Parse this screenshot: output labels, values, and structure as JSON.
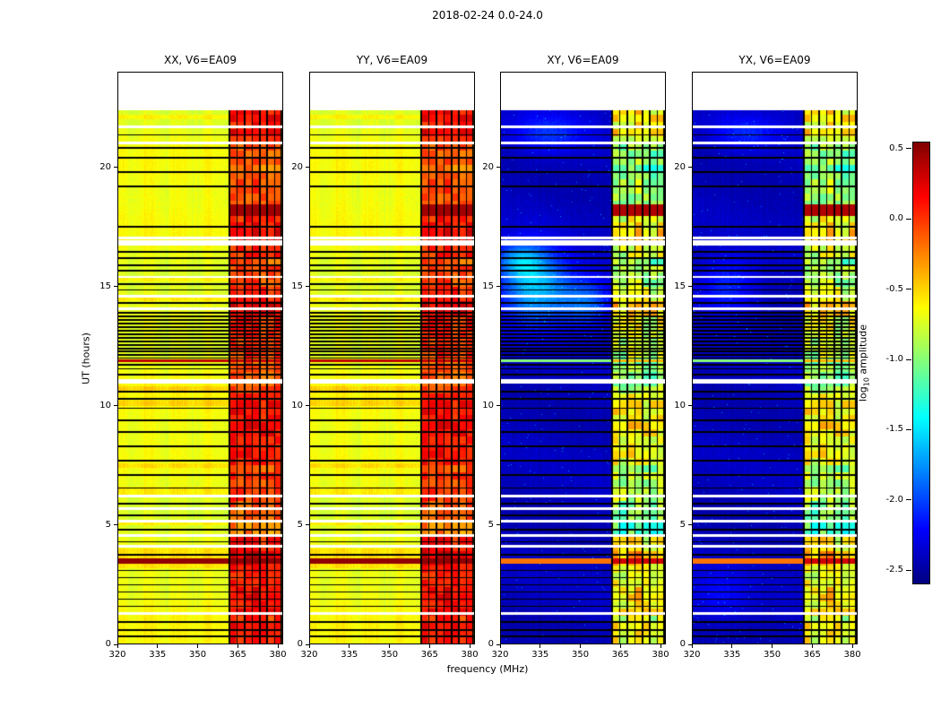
{
  "chart_data": {
    "type": "heatmap",
    "title": "2018-02-24 0.0-24.0",
    "colormap": "jet",
    "panels": [
      {
        "title": "XX, V6=EA09",
        "pol": "XX",
        "kind": "auto"
      },
      {
        "title": "YY, V6=EA09",
        "pol": "YY",
        "kind": "auto"
      },
      {
        "title": "XY, V6=EA09",
        "pol": "XY",
        "kind": "cross"
      },
      {
        "title": "YX, V6=EA09",
        "pol": "YX",
        "kind": "cross"
      }
    ],
    "xaxis": {
      "label": "frequency (MHz)",
      "range": [
        320,
        382
      ],
      "ticks": [
        320,
        335,
        350,
        365,
        380
      ]
    },
    "yaxis": {
      "label": "UT (hours)",
      "range": [
        0,
        24
      ],
      "ticks": [
        0,
        5,
        10,
        15,
        20
      ],
      "data_max": 22.4
    },
    "colorbar": {
      "label_pre": "log",
      "label_sub": "10",
      "label_post": " amplitude",
      "range": [
        -2.6,
        0.55
      ],
      "ticks": [
        "0.5",
        "0.0",
        "-0.5",
        "-1.0",
        "-1.5",
        "-2.0",
        "-2.5"
      ],
      "tick_values": [
        0.5,
        0.0,
        -0.5,
        -1.0,
        -1.5,
        -2.0,
        -2.5
      ]
    },
    "features": {
      "auto_base_level": -0.68,
      "cross_base_level": -2.42,
      "rfi_band_mhz": [
        361.5,
        381.7
      ],
      "rfi_auto_level": [
        -0.45,
        0.42
      ],
      "rfi_cross_level": [
        -1.5,
        -0.15
      ],
      "flagged_channels_mhz": [
        361.8,
        364.8,
        367.6,
        370.4,
        373.2,
        376.0,
        378.8,
        381.3
      ],
      "flagged_times": [
        0.35,
        0.6,
        0.95,
        1.6,
        1.9,
        2.2,
        2.5,
        2.8,
        3.1,
        3.75,
        4.3,
        4.8,
        5.4,
        5.9,
        6.55,
        7.1,
        7.7,
        8.3,
        8.9,
        9.4,
        9.9,
        10.3,
        10.6,
        11.3,
        11.55,
        11.72,
        12.0,
        12.12,
        12.28,
        12.4,
        12.55,
        12.7,
        12.85,
        13.0,
        13.15,
        13.3,
        13.45,
        13.6,
        13.75,
        13.9,
        14.3,
        14.85,
        15.1,
        15.65,
        15.9,
        16.2,
        16.45,
        17.5,
        19.2,
        19.8,
        20.4,
        20.8,
        21.35
      ],
      "gap_times": [
        1.3,
        4.1,
        4.55,
        5.15,
        5.7,
        6.2,
        10.98,
        11.08,
        14.05,
        14.6,
        15.4,
        16.78,
        16.9,
        17.02,
        21.0,
        21.7
      ],
      "events": [
        {
          "t0": 3.38,
          "t1": 3.62,
          "auto": 0.5,
          "cross": -0.2,
          "cross_band": 0.3,
          "band_only": false,
          "desc": "strong broadband burst"
        },
        {
          "t0": 11.82,
          "t1": 11.96,
          "auto": 0.35,
          "cross": -1.0,
          "cross_band": -0.4,
          "band_only": false,
          "desc": "broadband feature"
        },
        {
          "t0": 17.95,
          "t1": 18.45,
          "auto": 0.45,
          "cross": 0.4,
          "cross_band": 0.4,
          "band_only": true,
          "desc": "intense RFI period"
        }
      ],
      "cross_blobs": {
        "XY": [
          {
            "t": 15.0,
            "f": 333,
            "st": 1.1,
            "sf": 9,
            "a": 0.85
          },
          {
            "t": 14.3,
            "f": 352,
            "st": 0.7,
            "sf": 7,
            "a": 0.55
          },
          {
            "t": 16.1,
            "f": 327,
            "st": 0.5,
            "sf": 6,
            "a": 0.5
          },
          {
            "t": 21.4,
            "f": 338,
            "st": 0.6,
            "sf": 10,
            "a": 0.35
          }
        ],
        "YX": [
          {
            "t": 15.0,
            "f": 333,
            "st": 0.9,
            "sf": 8,
            "a": 0.35
          },
          {
            "t": 21.4,
            "f": 340,
            "st": 0.5,
            "sf": 9,
            "a": 0.3
          },
          {
            "t": 2.0,
            "f": 330,
            "st": 0.8,
            "sf": 8,
            "a": 0.2
          }
        ]
      }
    }
  }
}
